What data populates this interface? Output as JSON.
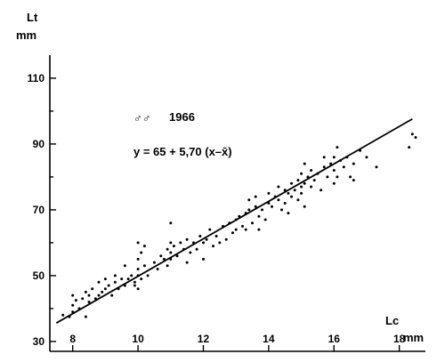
{
  "chart_data": {
    "type": "scatter",
    "ylabel": "Lt",
    "ylabel_unit": "mm",
    "xlabel": "Lc",
    "xlabel_unit": "mm",
    "xlim": [
      7.3,
      18.8
    ],
    "ylim": [
      27,
      117
    ],
    "x_ticks": [
      8,
      10,
      12,
      14,
      16,
      18
    ],
    "y_ticks": [
      30,
      50,
      70,
      90,
      110
    ],
    "y_minor_ticks": [
      40,
      60,
      80,
      100
    ],
    "grid": false,
    "legend": "none",
    "annotation_title": "1966",
    "annotation_symbol": "♂♂",
    "equation": "y = 65 + 5,70 (x–x̄)",
    "fit_line": {
      "x": [
        7.5,
        18.4
      ],
      "y": [
        35.6,
        97.6
      ]
    },
    "points": [
      [
        7.7,
        38
      ],
      [
        7.9,
        37.5
      ],
      [
        8.0,
        39
      ],
      [
        8.0,
        41
      ],
      [
        8.0,
        44
      ],
      [
        8.1,
        42.5
      ],
      [
        8.2,
        40
      ],
      [
        8.3,
        43
      ],
      [
        8.4,
        37.5
      ],
      [
        8.4,
        45
      ],
      [
        8.5,
        42
      ],
      [
        8.5,
        44
      ],
      [
        8.6,
        46
      ],
      [
        8.7,
        43
      ],
      [
        8.8,
        44
      ],
      [
        8.8,
        48
      ],
      [
        8.9,
        45
      ],
      [
        9.0,
        46
      ],
      [
        9.0,
        49
      ],
      [
        9.1,
        47
      ],
      [
        9.2,
        44
      ],
      [
        9.3,
        48
      ],
      [
        9.3,
        50
      ],
      [
        9.4,
        46
      ],
      [
        9.5,
        49
      ],
      [
        9.6,
        47
      ],
      [
        9.6,
        53
      ],
      [
        9.7,
        49
      ],
      [
        9.8,
        50
      ],
      [
        9.9,
        48
      ],
      [
        9.9,
        47
      ],
      [
        10.0,
        46
      ],
      [
        10.0,
        50
      ],
      [
        10.0,
        52
      ],
      [
        10.0,
        55
      ],
      [
        10.0,
        60
      ],
      [
        10.1,
        49
      ],
      [
        10.1,
        57
      ],
      [
        10.2,
        53
      ],
      [
        10.2,
        59
      ],
      [
        10.3,
        50
      ],
      [
        10.5,
        54
      ],
      [
        10.6,
        52
      ],
      [
        10.7,
        56
      ],
      [
        10.8,
        55
      ],
      [
        10.9,
        53
      ],
      [
        10.9,
        58
      ],
      [
        11.0,
        55
      ],
      [
        11.0,
        57
      ],
      [
        11.0,
        60
      ],
      [
        11.0,
        66
      ],
      [
        11.1,
        59
      ],
      [
        11.2,
        56
      ],
      [
        11.3,
        60
      ],
      [
        11.4,
        58
      ],
      [
        11.5,
        54
      ],
      [
        11.5,
        61
      ],
      [
        11.6,
        57
      ],
      [
        11.7,
        60
      ],
      [
        11.8,
        58
      ],
      [
        11.9,
        62
      ],
      [
        12.0,
        55
      ],
      [
        12.0,
        60
      ],
      [
        12.1,
        61
      ],
      [
        12.2,
        64
      ],
      [
        12.3,
        59
      ],
      [
        12.4,
        62
      ],
      [
        12.5,
        60
      ],
      [
        12.6,
        65
      ],
      [
        12.7,
        61
      ],
      [
        12.8,
        66
      ],
      [
        12.9,
        63
      ],
      [
        13.0,
        64
      ],
      [
        13.0,
        67
      ],
      [
        13.1,
        68
      ],
      [
        13.2,
        65
      ],
      [
        13.3,
        69
      ],
      [
        13.3,
        64
      ],
      [
        13.4,
        73
      ],
      [
        13.4,
        70
      ],
      [
        13.5,
        66
      ],
      [
        13.6,
        71
      ],
      [
        13.6,
        74
      ],
      [
        13.7,
        68
      ],
      [
        13.7,
        64
      ],
      [
        13.8,
        70
      ],
      [
        13.9,
        67
      ],
      [
        14.0,
        72
      ],
      [
        14.0,
        75
      ],
      [
        14.1,
        71
      ],
      [
        14.2,
        74
      ],
      [
        14.3,
        73
      ],
      [
        14.3,
        77
      ],
      [
        14.4,
        70
      ],
      [
        14.5,
        76
      ],
      [
        14.5,
        72
      ],
      [
        14.6,
        75
      ],
      [
        14.6,
        69
      ],
      [
        14.7,
        78
      ],
      [
        14.7,
        74
      ],
      [
        14.8,
        76
      ],
      [
        14.9,
        79
      ],
      [
        14.9,
        73
      ],
      [
        15.0,
        77
      ],
      [
        15.0,
        81
      ],
      [
        15.0,
        75
      ],
      [
        15.1,
        71
      ],
      [
        15.1,
        78
      ],
      [
        15.1,
        84
      ],
      [
        15.2,
        80
      ],
      [
        15.3,
        77
      ],
      [
        15.3,
        82
      ],
      [
        15.4,
        79
      ],
      [
        15.5,
        81
      ],
      [
        15.6,
        76
      ],
      [
        15.7,
        83
      ],
      [
        15.7,
        86
      ],
      [
        15.8,
        80
      ],
      [
        15.9,
        84
      ],
      [
        16.0,
        78
      ],
      [
        16.0,
        82
      ],
      [
        16.0,
        86
      ],
      [
        16.1,
        80
      ],
      [
        16.1,
        89
      ],
      [
        16.2,
        85
      ],
      [
        16.3,
        83
      ],
      [
        16.4,
        86
      ],
      [
        16.5,
        80
      ],
      [
        16.6,
        84
      ],
      [
        16.6,
        79
      ],
      [
        16.8,
        88
      ],
      [
        17.0,
        86
      ],
      [
        17.3,
        83
      ],
      [
        18.3,
        89
      ],
      [
        18.4,
        93
      ],
      [
        18.5,
        92
      ]
    ]
  }
}
